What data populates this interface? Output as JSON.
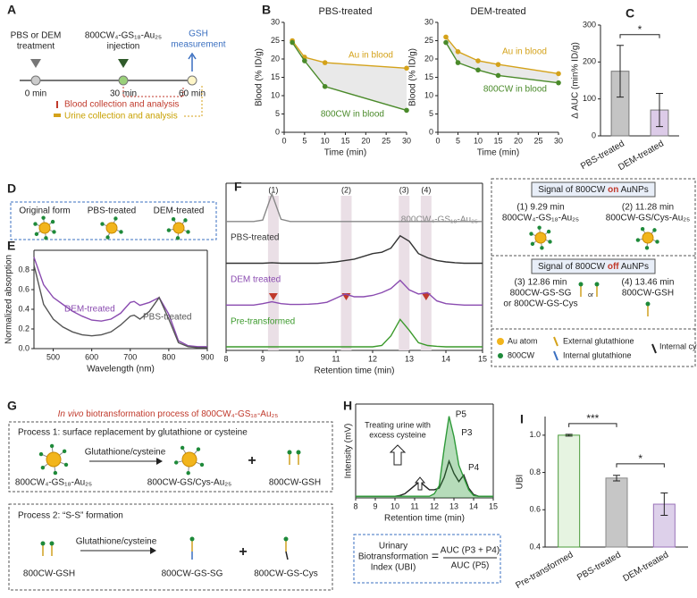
{
  "panel_labels": [
    "A",
    "B",
    "C",
    "D",
    "E",
    "F",
    "G",
    "H",
    "I"
  ],
  "panel_a": {
    "treatment": [
      "PBS or DEM",
      "treatment"
    ],
    "injection": [
      "800CW₄-GS₁₈-Au₂₅",
      "injection"
    ],
    "measurement": [
      "GSH",
      "measurement"
    ],
    "times": [
      "0 min",
      "30 min",
      "60 min"
    ],
    "legend": [
      "Blood collection and analysis",
      "Urine collection and analysis"
    ]
  },
  "panel_d": {
    "labels": [
      "Original form",
      "PBS-treated",
      "DEM-treated"
    ]
  },
  "panel_f_key": {
    "header_on": [
      "Signal of 800CW ",
      "on",
      " AuNPs"
    ],
    "item1": [
      "(1) 9.29 min",
      "800CW₄-GS₁₈-Au₂₅"
    ],
    "item2": [
      "(2) 11.28 min",
      "800CW-GS/Cys-Au₂₅"
    ],
    "header_off": [
      "Signal of 800CW ",
      "off",
      " AuNPs"
    ],
    "item3": [
      "(3) 12.86 min",
      "800CW-GS-SG",
      "or 800CW-GS-Cys"
    ],
    "item4": [
      "(4) 13.46 min",
      "800CW-GSH"
    ],
    "legend": [
      "Au atom",
      "800CW",
      "External glutathione",
      "Internal glutathione",
      "Internal cysteine"
    ],
    "or": "or"
  },
  "panel_g": {
    "title": [
      "In vivo",
      " biotransformation process of 800CW₄-GS₁₈-Au₂₅"
    ],
    "process1": {
      "title": "Process 1: surface replacement by glutathione or cysteine",
      "reagent": "Glutathione/cysteine",
      "labels": [
        "800CW₄-GS₁₈-Au₂₅",
        "800CW-GS/Cys-Au₂₅",
        "800CW-GSH"
      ],
      "plus": "+"
    },
    "process2": {
      "title": "Process 2: “S-S” formation",
      "reagent": "Glutathione/cysteine",
      "labels": [
        "800CW-GSH",
        "800CW-GS-SG",
        "800CW-GS-Cys"
      ],
      "plus": "+"
    }
  },
  "panel_h_formula": {
    "lhs": [
      "Urinary",
      "Biotransformation",
      "Index (UBI)"
    ],
    "equals": "=",
    "numerator": "AUC (P3 + P4)",
    "denominator": "AUC (P5)"
  },
  "chart_data": [
    {
      "type": "line",
      "title": "PBS-treated",
      "xlabel": "Time (min)",
      "ylabel": "Blood (% ID/g)",
      "x": [
        2,
        5,
        10,
        30
      ],
      "series": [
        {
          "name": "Au in blood",
          "color": "#d4a21a",
          "values": [
            25,
            20.5,
            19,
            17.5
          ]
        },
        {
          "name": "800CW in blood",
          "color": "#4a8a2a",
          "values": [
            24.5,
            19.5,
            12.5,
            6
          ]
        }
      ],
      "xlim": [
        0,
        30
      ],
      "ylim": [
        0,
        30
      ],
      "xticks": [
        0,
        5,
        10,
        15,
        20,
        25,
        30
      ],
      "yticks": [
        0,
        5,
        10,
        15,
        20,
        25,
        30
      ]
    },
    {
      "type": "line",
      "title": "DEM-treated",
      "xlabel": "Time (min)",
      "ylabel": "Blood (% ID/g)",
      "x": [
        2,
        5,
        10,
        15,
        30
      ],
      "series": [
        {
          "name": "Au in blood",
          "color": "#d4a21a",
          "values": [
            26,
            22,
            19.5,
            18.5,
            16
          ]
        },
        {
          "name": "800CW in blood",
          "color": "#4a8a2a",
          "values": [
            24.5,
            19,
            17,
            15.5,
            13.5
          ]
        }
      ],
      "xlim": [
        0,
        30
      ],
      "ylim": [
        0,
        30
      ],
      "xticks": [
        0,
        5,
        10,
        15,
        20,
        25,
        30
      ],
      "yticks": [
        0,
        5,
        10,
        15,
        20,
        25,
        30
      ]
    },
    {
      "type": "bar",
      "ylabel": "Δ AUC (min% ID/g)",
      "categories": [
        "PBS-treated",
        "DEM-treated"
      ],
      "values": [
        175,
        70
      ],
      "errors": [
        70,
        45
      ],
      "colors": [
        "#c4c4c4",
        "#dccbe8"
      ],
      "ylim": [
        0,
        300
      ],
      "yticks": [
        0,
        100,
        200,
        300
      ],
      "significance": [
        "*"
      ]
    },
    {
      "type": "line",
      "xlabel": "Wavelength (nm)",
      "ylabel": "Normalized absorption",
      "x": [
        450,
        475,
        500,
        525,
        550,
        575,
        600,
        625,
        650,
        675,
        700,
        710,
        725,
        750,
        775,
        800,
        825,
        850,
        875,
        900
      ],
      "series": [
        {
          "name": "DEM-treated",
          "color": "#8a4bb0",
          "values": [
            0.93,
            0.65,
            0.52,
            0.45,
            0.38,
            0.33,
            0.29,
            0.28,
            0.3,
            0.36,
            0.47,
            0.48,
            0.44,
            0.47,
            0.52,
            0.35,
            0.08,
            0.03,
            0.02,
            0.02
          ]
        },
        {
          "name": "PBS-treated",
          "color": "#555555",
          "values": [
            0.85,
            0.45,
            0.3,
            0.22,
            0.17,
            0.14,
            0.13,
            0.14,
            0.17,
            0.24,
            0.33,
            0.34,
            0.3,
            0.38,
            0.52,
            0.3,
            0.06,
            0.02,
            0.01,
            0.01
          ]
        }
      ],
      "xlim": [
        450,
        900
      ],
      "ylim": [
        0,
        1
      ],
      "xticks": [
        500,
        600,
        700,
        800,
        900
      ],
      "yticks": [
        {
          "value": 0,
          "label": "0.0"
        },
        0.2,
        0.4,
        0.6,
        0.8
      ]
    },
    {
      "type": "line",
      "xlabel": "Retention time (min)",
      "x": [
        8,
        8.25,
        8.5,
        8.75,
        9,
        9.25,
        9.5,
        9.75,
        10,
        10.25,
        10.5,
        10.75,
        11,
        11.25,
        11.5,
        11.75,
        12,
        12.25,
        12.5,
        12.75,
        13,
        13.25,
        13.5,
        13.75,
        14,
        14.25,
        14.5,
        14.75,
        15
      ],
      "series": [
        {
          "name": "800CW₄-GS₁₈-Au₂₅",
          "color": "#888888",
          "values": [
            0,
            0,
            0,
            0,
            0.05,
            1,
            0.08,
            0,
            0,
            0,
            0,
            0,
            0,
            0,
            0,
            0,
            0,
            0,
            0,
            0,
            0,
            0,
            0,
            0,
            0,
            0,
            0,
            0,
            0
          ]
        },
        {
          "name": "PBS-treated",
          "color": "#333333",
          "values": [
            0,
            0,
            0,
            0,
            0,
            0.02,
            0,
            0,
            0,
            0,
            0,
            0.02,
            0.05,
            0.1,
            0.15,
            0.25,
            0.35,
            0.4,
            0.55,
            1,
            0.8,
            0.35,
            0.2,
            0.1,
            0.05,
            0.02,
            0,
            0,
            0
          ]
        },
        {
          "name": "DEM treated",
          "color": "#8a4bb0",
          "values": [
            0,
            0,
            0,
            0,
            0.05,
            0.12,
            0.05,
            0.02,
            0.02,
            0.03,
            0.05,
            0.1,
            0.25,
            0.4,
            0.3,
            0.3,
            0.35,
            0.45,
            0.6,
            0.9,
            0.55,
            0.4,
            0.45,
            0.15,
            0.05,
            0.02,
            0,
            0,
            0
          ]
        },
        {
          "name": "Pre-transformed",
          "color": "#3c9a2c",
          "values": [
            0,
            0,
            0,
            0,
            0,
            0,
            0,
            0,
            0,
            0,
            0,
            0,
            0,
            0,
            0,
            0,
            0,
            0.05,
            0.4,
            1,
            0.6,
            0.15,
            0.05,
            0.02,
            0,
            0,
            0,
            0,
            0
          ]
        }
      ],
      "peaks": [
        {
          "label": "(1)",
          "x": 9.29
        },
        {
          "label": "(2)",
          "x": 11.28
        },
        {
          "label": "(3)",
          "x": 12.86
        },
        {
          "label": "(4)",
          "x": 13.46
        }
      ],
      "xlim": [
        8,
        15
      ],
      "ylim": [
        0,
        1
      ],
      "xticks": [
        8,
        9,
        10,
        11,
        12,
        13,
        14,
        15
      ]
    },
    {
      "type": "line",
      "xlabel": "Retention time (min)",
      "ylabel": "Intensity (mV)",
      "x": [
        8,
        8.25,
        8.5,
        8.75,
        9,
        9.25,
        9.5,
        9.75,
        10,
        10.25,
        10.5,
        10.75,
        11,
        11.25,
        11.5,
        11.75,
        12,
        12.25,
        12.5,
        12.75,
        13,
        13.25,
        13.5,
        13.75,
        14,
        14.25,
        14.5,
        14.75,
        15
      ],
      "series": [
        {
          "color": "#222222",
          "values": [
            0.02,
            0.02,
            0.02,
            0.02,
            0.02,
            0.02,
            0.02,
            0.02,
            0.02,
            0.03,
            0.05,
            0.1,
            0.15,
            0.2,
            0.15,
            0.1,
            0.1,
            0.12,
            0.25,
            0.45,
            0.3,
            0.2,
            0.28,
            0.12,
            0.04,
            0.02,
            0.02,
            0.02,
            0.02
          ]
        },
        {
          "color": "#2f9a3a",
          "values": [
            0.02,
            0.02,
            0.02,
            0.02,
            0.02,
            0.02,
            0.02,
            0.02,
            0.02,
            0.02,
            0.02,
            0.02,
            0.02,
            0.02,
            0.02,
            0.02,
            0.05,
            0.15,
            0.6,
            1,
            0.75,
            0.4,
            0.25,
            0.1,
            0.03,
            0.02,
            0.02,
            0.02,
            0.02
          ]
        }
      ],
      "annotation": [
        "Treating urine with",
        "excess cysteine"
      ],
      "peak_labels": [
        "P5",
        "P3",
        "P4"
      ],
      "xlim": [
        8,
        15
      ],
      "ylim": [
        0,
        1.15
      ],
      "xticks": [
        8,
        9,
        10,
        11,
        12,
        13,
        14,
        15
      ]
    },
    {
      "type": "bar",
      "ylabel": "UBI",
      "categories": [
        "Pre-transformed",
        "PBS-treated",
        "DEM-treated"
      ],
      "values": [
        1,
        0.77,
        0.63
      ],
      "errors": [
        0.005,
        0.015,
        0.06
      ],
      "colors": [
        "#e6f4e1",
        "#c6c6c6",
        "#ddd0ea"
      ],
      "edges": [
        "#4a9a3a",
        "#888888",
        "#9a72b8"
      ],
      "ylim": [
        0.4,
        1.1
      ],
      "yticks": [
        0.4,
        0.6,
        0.8,
        {
          "value": 1,
          "label": "1.0"
        }
      ],
      "significance": [
        "***",
        "*"
      ]
    }
  ]
}
